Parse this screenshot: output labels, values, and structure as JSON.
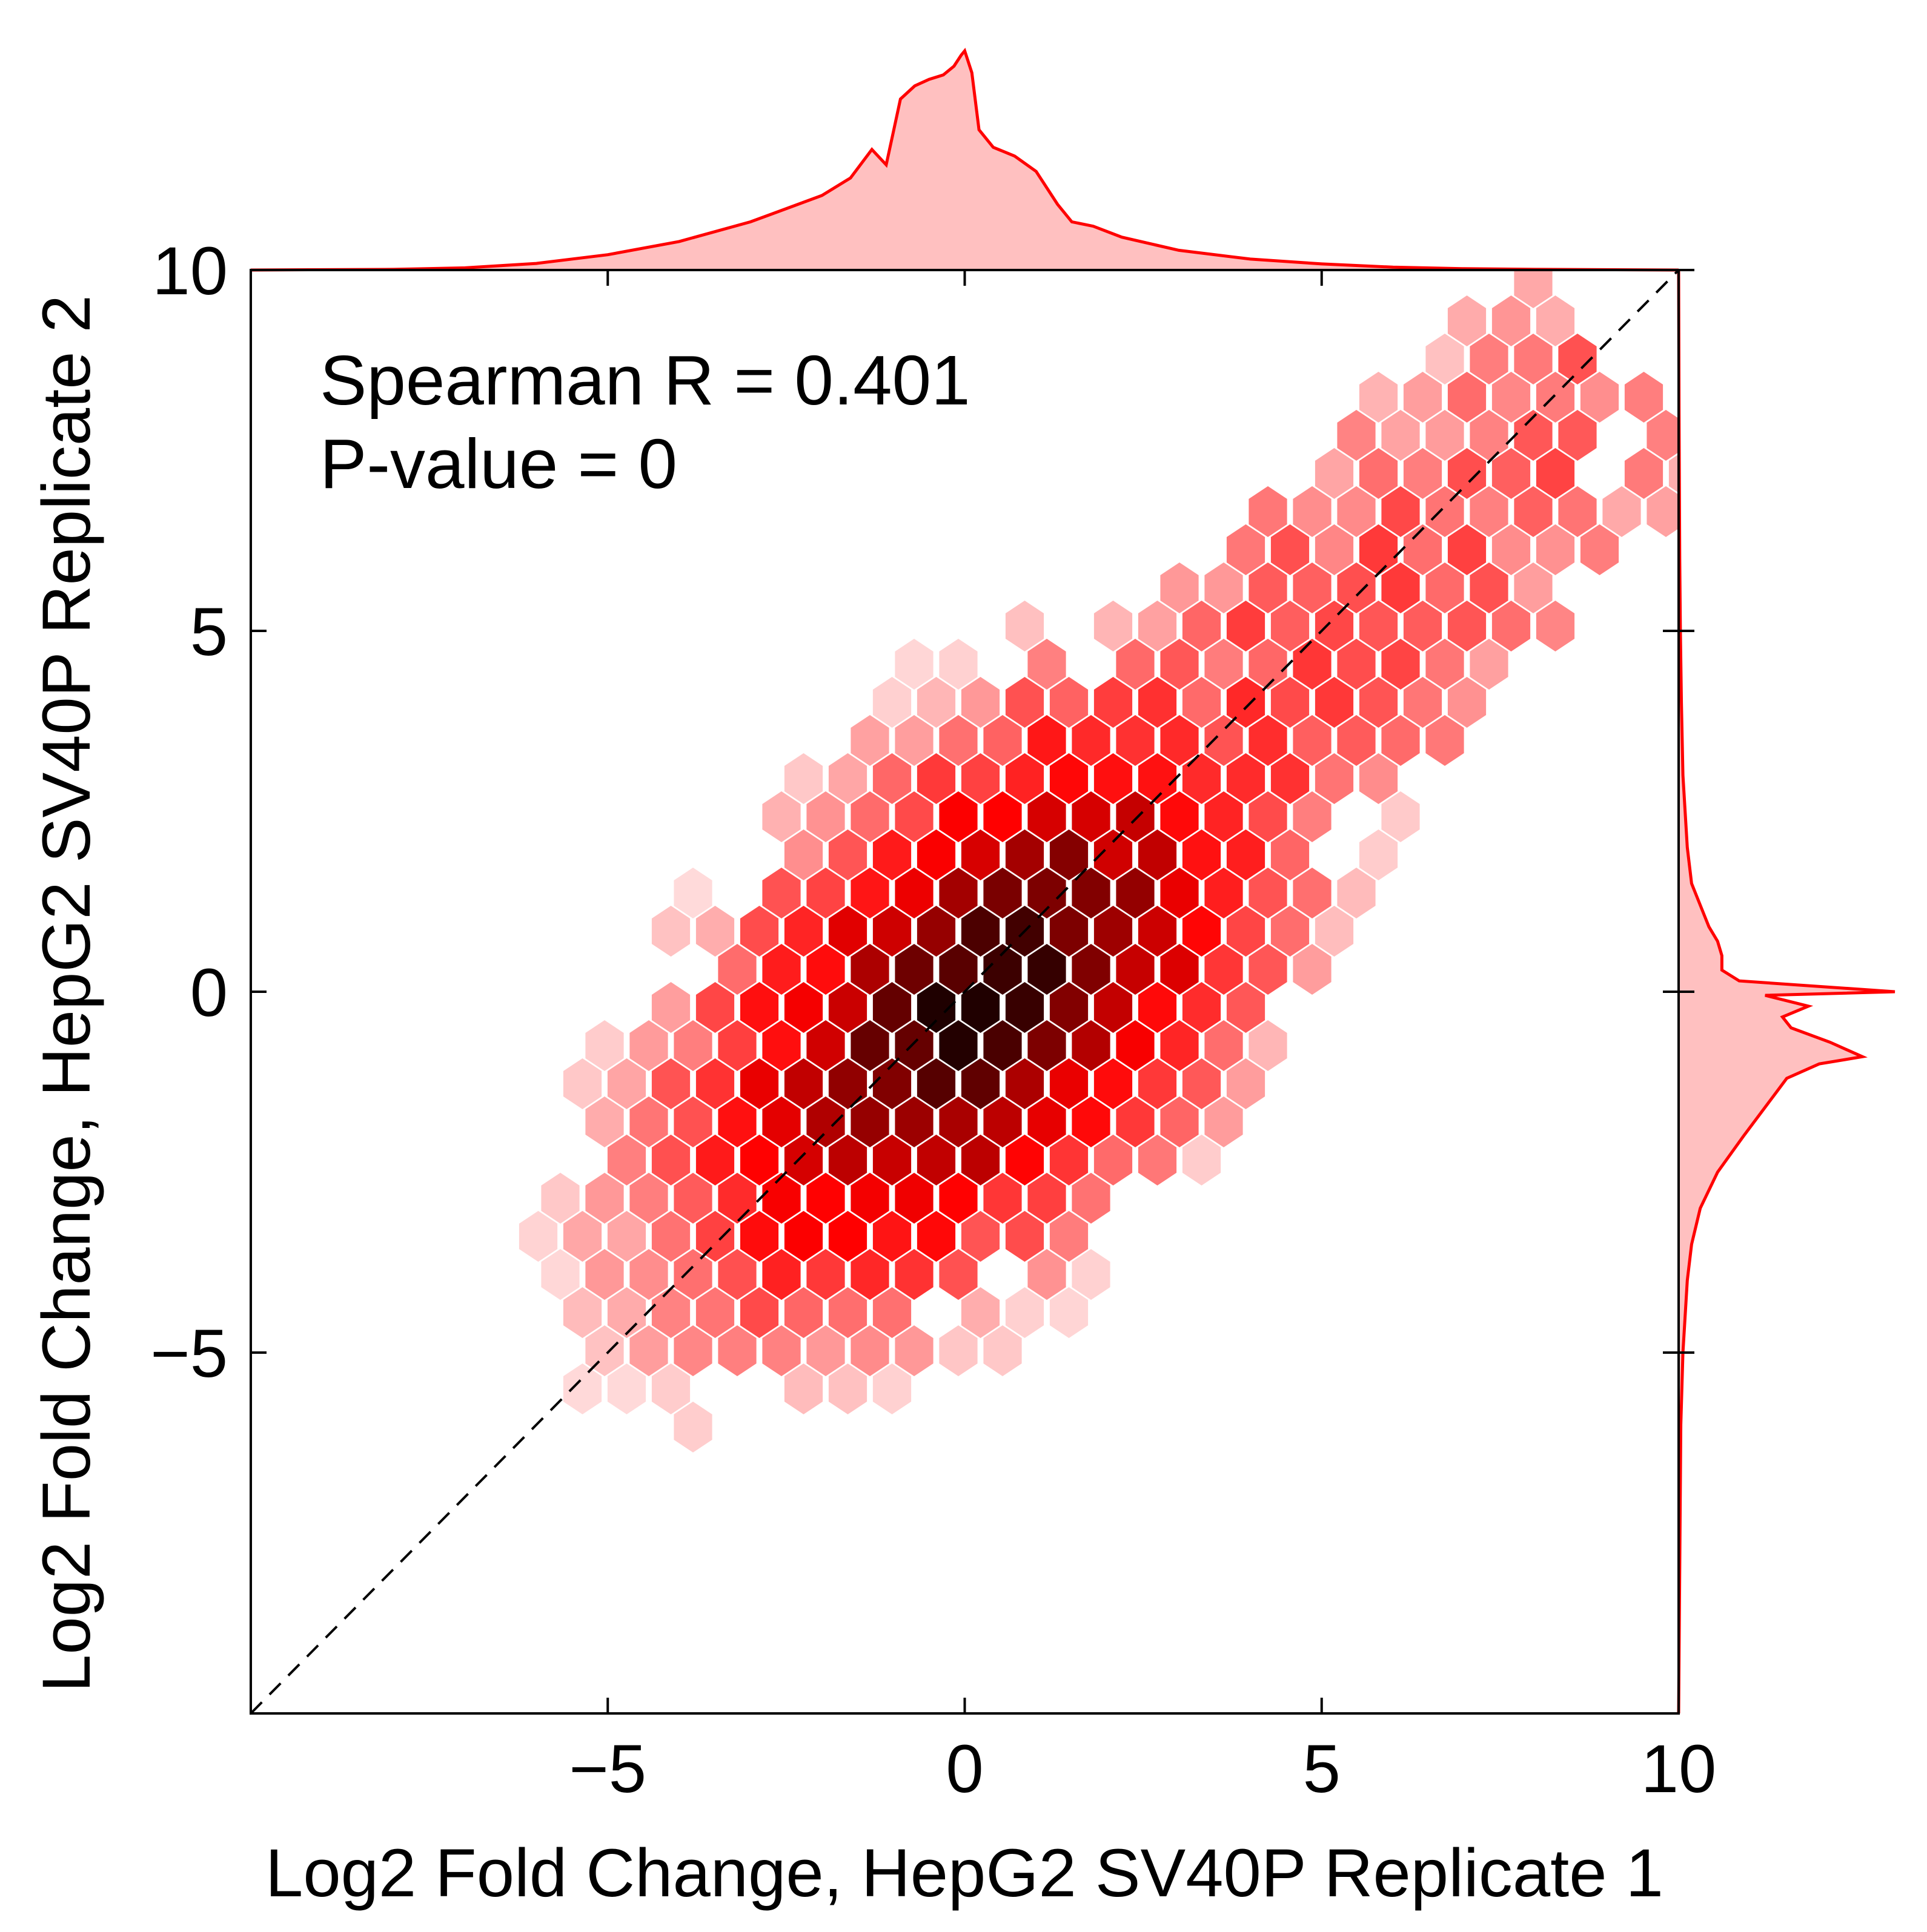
{
  "chart_data": {
    "type": "hexbin",
    "xlabel": "Log2 Fold Change, HepG2 SV40P Replicate 1",
    "ylabel": "Log2 Fold Change, HepG2 SV40P Replicate 2",
    "xlim": [
      -10,
      10
    ],
    "ylim": [
      -10,
      10
    ],
    "xticks": [
      -5,
      0,
      5,
      10
    ],
    "yticks": [
      -5,
      0,
      5,
      10
    ],
    "x_tick_labels": [
      "−5",
      "0",
      "5",
      "10"
    ],
    "y_tick_labels": [
      "−5",
      "0",
      "5",
      "10"
    ],
    "annotation": {
      "stat_line": "Spearman R = 0.401",
      "pvalue_line": "P-value = 0"
    },
    "reference_line": {
      "style": "dashed",
      "color": "#000000",
      "from": [
        -10,
        -10
      ],
      "to": [
        10,
        10
      ]
    },
    "colors": {
      "base": "#ff0000",
      "light": "#ffe5e5",
      "dark": "#000000",
      "marginal_line": "#ff0000",
      "marginal_fill": "#ffc0c0"
    },
    "spearman_r": 0.401,
    "p_value": 0,
    "density_peak": [
      0.25,
      -0.1
    ],
    "marginal_top": {
      "x": [
        -10,
        -8,
        -7,
        -6,
        -5,
        -4,
        -3,
        -2.5,
        -2,
        -1.6,
        -1.3,
        -1.1,
        -1.0,
        -0.9,
        -0.7,
        -0.5,
        -0.3,
        -0.15,
        -0.05,
        0.0,
        0.1,
        0.2,
        0.4,
        0.7,
        1.0,
        1.3,
        1.5,
        1.8,
        2.2,
        2.6,
        3,
        4,
        5,
        6,
        7,
        8,
        10
      ],
      "density": [
        0,
        0.003,
        0.01,
        0.03,
        0.07,
        0.13,
        0.22,
        0.28,
        0.34,
        0.42,
        0.55,
        0.48,
        0.63,
        0.78,
        0.84,
        0.87,
        0.89,
        0.93,
        0.98,
        1.0,
        0.9,
        0.64,
        0.56,
        0.52,
        0.45,
        0.3,
        0.22,
        0.2,
        0.15,
        0.12,
        0.09,
        0.05,
        0.028,
        0.013,
        0.006,
        0.003,
        0
      ]
    },
    "marginal_right": {
      "y": [
        -10,
        -8,
        -6,
        -5,
        -4,
        -3.5,
        -3,
        -2.5,
        -2,
        -1.6,
        -1.4,
        -1.2,
        -1.0,
        -0.9,
        -0.7,
        -0.5,
        -0.35,
        -0.2,
        -0.05,
        0.0,
        0.15,
        0.3,
        0.5,
        0.7,
        0.9,
        1.2,
        1.5,
        2,
        3,
        4,
        5,
        6,
        8,
        10
      ],
      "density": [
        0,
        0.005,
        0.01,
        0.02,
        0.04,
        0.06,
        0.1,
        0.18,
        0.3,
        0.4,
        0.45,
        0.5,
        0.65,
        0.85,
        0.7,
        0.52,
        0.48,
        0.6,
        0.4,
        1.0,
        0.28,
        0.2,
        0.2,
        0.18,
        0.14,
        0.1,
        0.06,
        0.04,
        0.02,
        0.013,
        0.008,
        0.005,
        0.002,
        0
      ]
    }
  }
}
